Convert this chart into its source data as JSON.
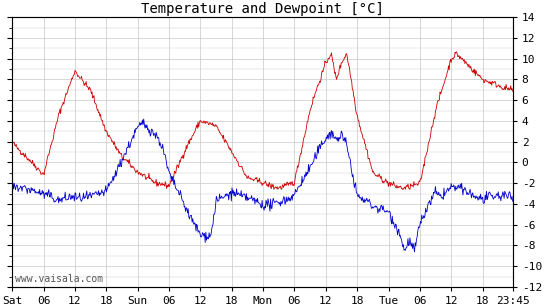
{
  "title": "Temperature and Dewpoint [°C]",
  "ylim": [
    -12,
    14
  ],
  "yticks": [
    -12,
    -10,
    -8,
    -6,
    -4,
    -2,
    0,
    2,
    4,
    6,
    8,
    10,
    12,
    14
  ],
  "watermark": "www.vaisala.com",
  "temp_color": "#cc0000",
  "dewp_color": "#0000cc",
  "bg_color": "#ffffff",
  "grid_color": "#c8c8c8",
  "title_fontsize": 10,
  "tick_fontsize": 8,
  "watermark_fontsize": 7,
  "total_hours": 95.75,
  "temp_keypoints": [
    [
      0,
      2.0
    ],
    [
      3,
      0.5
    ],
    [
      6,
      -1.0
    ],
    [
      9,
      5.0
    ],
    [
      12,
      9.0
    ],
    [
      15,
      7.0
    ],
    [
      18,
      3.0
    ],
    [
      21,
      0.5
    ],
    [
      24,
      -1.0
    ],
    [
      27,
      -2.0
    ],
    [
      30,
      -2.5
    ],
    [
      33,
      1.0
    ],
    [
      36,
      4.0
    ],
    [
      39,
      3.5
    ],
    [
      42,
      1.0
    ],
    [
      45,
      -1.5
    ],
    [
      48,
      -2.0
    ],
    [
      51,
      -2.5
    ],
    [
      54,
      -2.0
    ],
    [
      57,
      5.0
    ],
    [
      60,
      9.5
    ],
    [
      61,
      10.5
    ],
    [
      62,
      8.0
    ],
    [
      63,
      9.5
    ],
    [
      64,
      10.5
    ],
    [
      66,
      4.5
    ],
    [
      69,
      -1.0
    ],
    [
      72,
      -2.0
    ],
    [
      75,
      -2.5
    ],
    [
      78,
      -2.0
    ],
    [
      81,
      5.0
    ],
    [
      84,
      10.0
    ],
    [
      85,
      10.5
    ],
    [
      86,
      10.0
    ],
    [
      87,
      9.5
    ],
    [
      88,
      9.0
    ],
    [
      90,
      8.0
    ],
    [
      93,
      7.5
    ],
    [
      95.75,
      7.0
    ]
  ],
  "dewp_keypoints": [
    [
      0,
      -2.0
    ],
    [
      3,
      -2.5
    ],
    [
      6,
      -3.0
    ],
    [
      9,
      -3.5
    ],
    [
      12,
      -3.0
    ],
    [
      15,
      -3.0
    ],
    [
      18,
      -2.5
    ],
    [
      21,
      0.5
    ],
    [
      24,
      3.5
    ],
    [
      25,
      4.0
    ],
    [
      26,
      3.5
    ],
    [
      27,
      3.0
    ],
    [
      28,
      2.5
    ],
    [
      29,
      1.0
    ],
    [
      30,
      -1.0
    ],
    [
      33,
      -4.0
    ],
    [
      36,
      -7.0
    ],
    [
      38,
      -7.0
    ],
    [
      39,
      -3.5
    ],
    [
      42,
      -3.0
    ],
    [
      45,
      -3.5
    ],
    [
      48,
      -4.0
    ],
    [
      51,
      -4.0
    ],
    [
      54,
      -3.5
    ],
    [
      57,
      -1.0
    ],
    [
      60,
      2.0
    ],
    [
      61,
      2.5
    ],
    [
      62,
      2.0
    ],
    [
      63,
      2.5
    ],
    [
      64,
      1.5
    ],
    [
      65,
      -1.0
    ],
    [
      66,
      -3.5
    ],
    [
      69,
      -4.5
    ],
    [
      72,
      -5.0
    ],
    [
      74,
      -6.5
    ],
    [
      75,
      -8.5
    ],
    [
      76,
      -7.5
    ],
    [
      77,
      -8.5
    ],
    [
      78,
      -6.0
    ],
    [
      80,
      -4.0
    ],
    [
      81,
      -3.0
    ],
    [
      82,
      -3.5
    ],
    [
      83,
      -3.0
    ],
    [
      84,
      -2.5
    ],
    [
      85,
      -2.5
    ],
    [
      87,
      -3.0
    ],
    [
      89,
      -3.5
    ],
    [
      90,
      -3.5
    ],
    [
      93,
      -3.0
    ],
    [
      95.75,
      -3.0
    ]
  ]
}
